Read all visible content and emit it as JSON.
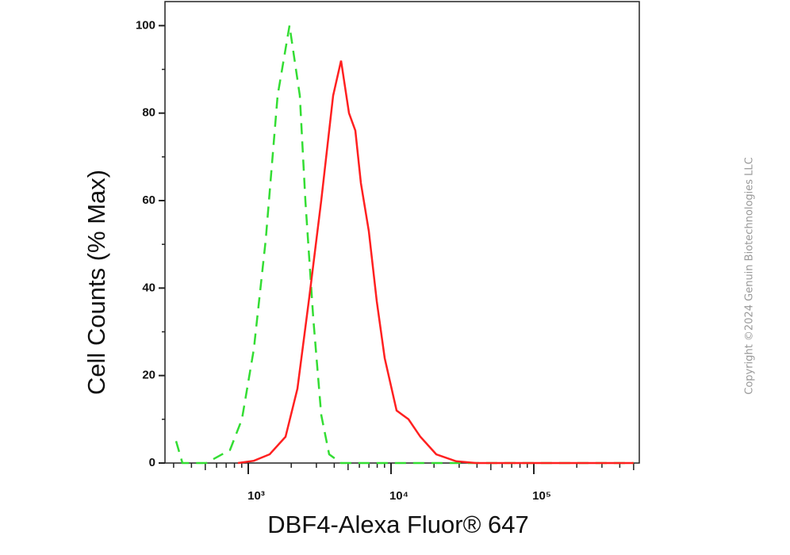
{
  "chart_data": {
    "type": "line",
    "xlabel": "DBF4-Alexa Fluor® 647",
    "ylabel": "Cell Counts (% Max)",
    "copyright": "Copyright ©2024 Genuin Biotechnologies LLC",
    "xscale": "log",
    "xlim": [
      261,
      548000
    ],
    "ylim": [
      0,
      105.5
    ],
    "xticks": [
      {
        "value": 1000,
        "label": "10³"
      },
      {
        "value": 10000,
        "label": "10⁴"
      },
      {
        "value": 100000,
        "label": "10⁵"
      }
    ],
    "yticks": [
      0,
      20,
      40,
      60,
      80,
      100
    ],
    "series": [
      {
        "color": "#33dd33",
        "dashed": true,
        "x": [
          312,
          346,
          508,
          745,
          903,
          1094,
          1325,
          1606,
          1945,
          2296,
          2512,
          2855,
          3243,
          3687,
          4467,
          10000,
          500000
        ],
        "values": [
          5,
          0,
          0,
          3,
          10,
          26,
          51,
          84,
          100,
          84,
          60,
          33,
          11,
          2,
          0,
          0,
          0
        ]
      },
      {
        "color": "#ff2020",
        "dashed": false,
        "x": [
          847,
          1094,
          1413,
          1824,
          2210,
          2679,
          3243,
          3930,
          4467,
          5077,
          5623,
          6150,
          6990,
          7943,
          9027,
          10940,
          13250,
          16060,
          20740,
          28570,
          39260,
          500000
        ],
        "values": [
          0,
          0.5,
          2,
          6,
          17,
          38,
          60,
          84,
          92,
          80,
          76,
          64,
          53,
          37,
          24,
          12,
          10,
          6,
          2,
          0.4,
          0,
          0
        ]
      }
    ]
  }
}
